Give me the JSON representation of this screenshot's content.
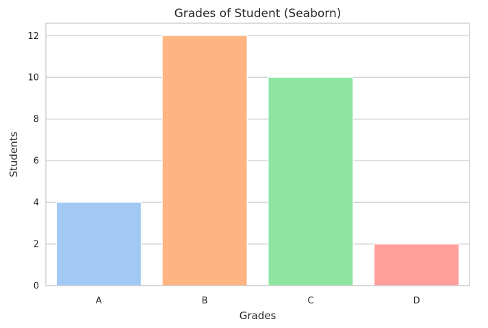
{
  "chart_data": {
    "type": "bar",
    "title": "Grades of Student (Seaborn)",
    "xlabel": "Grades",
    "ylabel": "Students",
    "categories": [
      "A",
      "B",
      "C",
      "D"
    ],
    "values": [
      4,
      12,
      10,
      2
    ],
    "colors": [
      "#a1c9f4",
      "#ffb482",
      "#8de5a1",
      "#ff9f9b"
    ],
    "ylim": [
      0,
      12.6
    ],
    "yticks": [
      0,
      2,
      4,
      6,
      8,
      10,
      12
    ],
    "grid": true,
    "legend": false,
    "style": {
      "background": "#ffffff",
      "grid_color": "#cccccc",
      "spine_color": "#cccccc",
      "text_color": "#262626"
    }
  }
}
